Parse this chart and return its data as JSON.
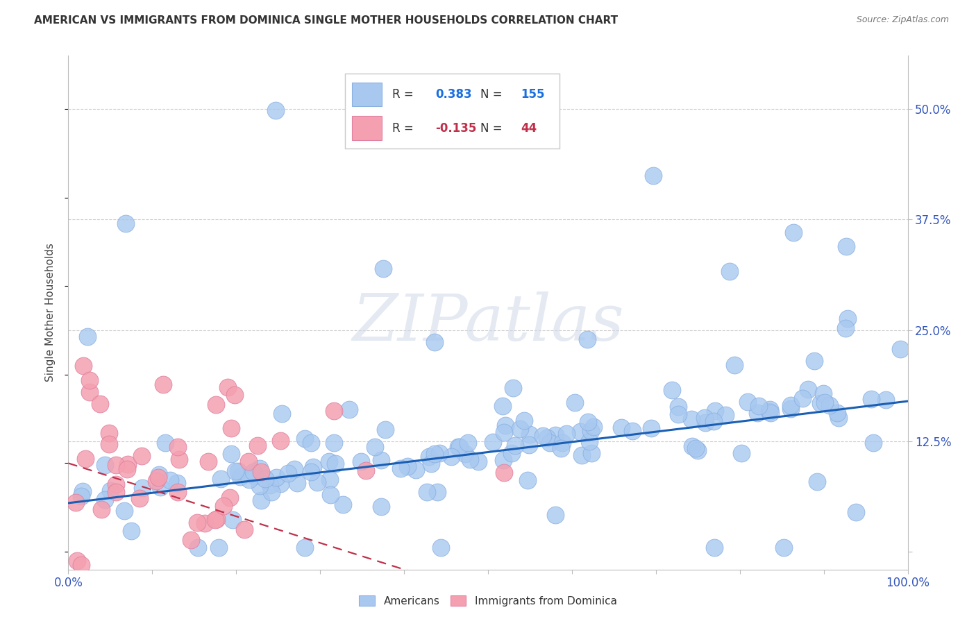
{
  "title": "AMERICAN VS IMMIGRANTS FROM DOMINICA SINGLE MOTHER HOUSEHOLDS CORRELATION CHART",
  "source": "Source: ZipAtlas.com",
  "ylabel": "Single Mother Households",
  "xlabel": "",
  "xlim": [
    0,
    1.0
  ],
  "ylim": [
    -0.02,
    0.56
  ],
  "x_ticks": [
    0.0,
    0.1,
    0.2,
    0.3,
    0.4,
    0.5,
    0.6,
    0.7,
    0.8,
    0.9,
    1.0
  ],
  "y_ticks": [
    0.0,
    0.125,
    0.25,
    0.375,
    0.5
  ],
  "y_tick_labels": [
    "",
    "12.5%",
    "25.0%",
    "37.5%",
    "50.0%"
  ],
  "R_american": 0.383,
  "N_american": 155,
  "R_dominica": -0.135,
  "N_dominica": 44,
  "american_color": "#a8c8f0",
  "dominica_color": "#f4a0b0",
  "trend_american_color": "#1a5fb4",
  "trend_dominica_color": "#c0304a",
  "legend_R_color": "#1a6fdf",
  "legend_N_color": "#c0304a",
  "watermark": "ZIPatlas",
  "background_color": "#ffffff",
  "grid_color": "#cccccc"
}
